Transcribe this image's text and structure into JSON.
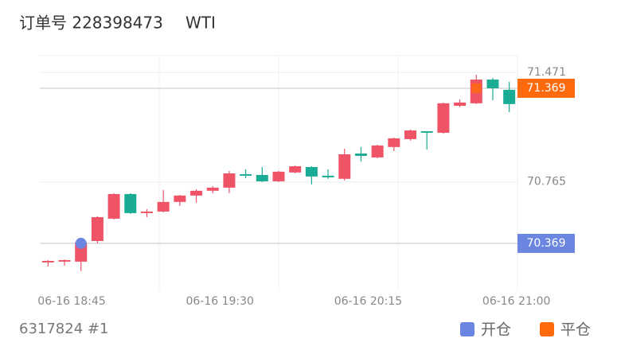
{
  "header": {
    "title": "订单号 228398473",
    "symbol": "WTI"
  },
  "footer": {
    "left": "6317824 #1"
  },
  "chart_data": {
    "type": "candlestick",
    "categories": [
      null,
      "06-16 18:45",
      null,
      null,
      null,
      null,
      null,
      null,
      null,
      null,
      "06-16 19:30",
      null,
      null,
      null,
      null,
      null,
      null,
      null,
      null,
      "06-16 20:15",
      null,
      null,
      null,
      null,
      null,
      null,
      null,
      null,
      "06-16 21:00"
    ],
    "open": [
      70.246,
      70.251,
      70.251,
      70.384,
      70.528,
      70.687,
      70.564,
      70.574,
      70.636,
      70.677,
      70.708,
      70.728,
      70.815,
      70.81,
      70.769,
      70.826,
      70.861,
      70.805,
      70.785,
      70.948,
      70.923,
      70.99,
      71.041,
      71.092,
      71.082,
      71.256,
      71.272,
      71.425,
      71.359
    ],
    "high": [
      70.261,
      70.266,
      70.374,
      70.543,
      70.692,
      70.692,
      70.59,
      70.713,
      70.682,
      70.718,
      70.738,
      70.836,
      70.846,
      70.861,
      70.836,
      70.872,
      70.866,
      70.846,
      70.979,
      70.99,
      71.005,
      71.051,
      71.103,
      71.092,
      71.277,
      71.297,
      71.456,
      71.436,
      71.41
    ],
    "low": [
      70.22,
      70.225,
      70.19,
      70.369,
      70.523,
      70.559,
      70.538,
      70.569,
      70.61,
      70.631,
      70.692,
      70.692,
      70.79,
      70.764,
      70.764,
      70.82,
      70.749,
      70.785,
      70.774,
      70.897,
      70.918,
      70.964,
      71.031,
      70.974,
      71.077,
      71.246,
      71.267,
      71.292,
      71.215
    ],
    "close": [
      70.256,
      70.261,
      70.374,
      70.538,
      70.687,
      70.564,
      70.574,
      70.636,
      70.677,
      70.708,
      70.728,
      70.82,
      70.805,
      70.769,
      70.831,
      70.866,
      70.8,
      70.795,
      70.943,
      70.933,
      71.0,
      71.046,
      71.097,
      71.082,
      71.272,
      71.277,
      71.425,
      71.369,
      71.267
    ],
    "up_color": "#ef5466",
    "down_color": "#1aab94",
    "ylim": [
      70.066,
      71.579
    ],
    "yticks": [
      70.765,
      71.471
    ],
    "markers": [
      {
        "name": "开仓",
        "color": "#6b86e0",
        "value": 70.369,
        "index": 2
      },
      {
        "name": "平仓",
        "color": "#fe6a0c",
        "value": 71.369,
        "index": 26
      }
    ]
  }
}
